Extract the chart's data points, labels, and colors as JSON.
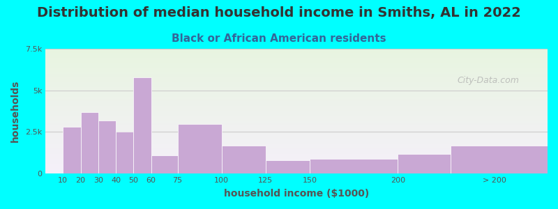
{
  "title": "Distribution of median household income in Smiths, AL in 2022",
  "subtitle": "Black or African American residents",
  "xlabel": "household income ($1000)",
  "ylabel": "households",
  "background_outer": "#00FFFF",
  "bar_color": "#C9A8D4",
  "bar_edgecolor": "#C9A8D4",
  "categories": [
    "10",
    "20",
    "30",
    "40",
    "50",
    "60",
    "75",
    "100",
    "125",
    "150",
    "200",
    "> 200"
  ],
  "values": [
    2800,
    3700,
    3200,
    2500,
    5800,
    1100,
    3000,
    1700,
    800,
    900,
    1200,
    1700
  ],
  "ylim": [
    0,
    7500
  ],
  "yticks": [
    0,
    2500,
    5000,
    7500
  ],
  "ytick_labels": [
    "0",
    "2.5k",
    "5k",
    "7.5k"
  ],
  "plot_bg_color_top": "#e8f5e0",
  "plot_bg_color_bottom": "#f5f0fa",
  "grid_color": "#cccccc",
  "watermark": "City-Data.com",
  "title_fontsize": 14,
  "subtitle_fontsize": 11,
  "axis_label_fontsize": 10,
  "tick_fontsize": 8
}
